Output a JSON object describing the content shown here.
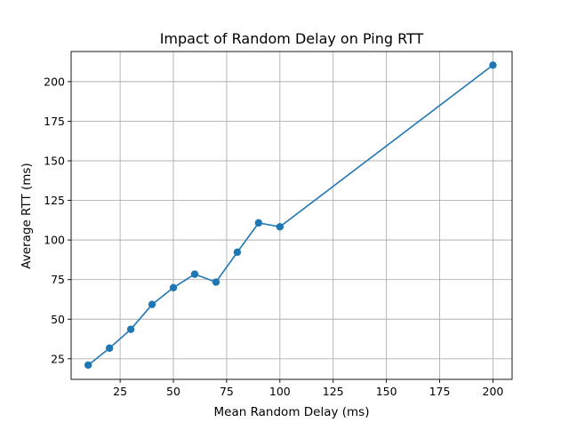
{
  "chart_data": {
    "type": "line",
    "title": "Impact of Random Delay on Ping RTT",
    "xlabel": "Mean Random Delay (ms)",
    "ylabel": "Average RTT (ms)",
    "xlim": [
      2,
      209
    ],
    "ylim": [
      12,
      219
    ],
    "xticks": [
      25,
      50,
      75,
      100,
      125,
      150,
      175,
      200
    ],
    "yticks": [
      25,
      50,
      75,
      100,
      125,
      150,
      175,
      200
    ],
    "grid": true,
    "markers": true,
    "color": "#1f77b4",
    "series": [
      {
        "x": [
          10,
          20,
          30,
          40,
          50,
          60,
          70,
          80,
          90,
          100,
          200
        ],
        "y": [
          21.0,
          31.7,
          43.6,
          59.3,
          69.9,
          78.4,
          73.4,
          92.3,
          110.8,
          108.3,
          210.4
        ]
      }
    ]
  }
}
